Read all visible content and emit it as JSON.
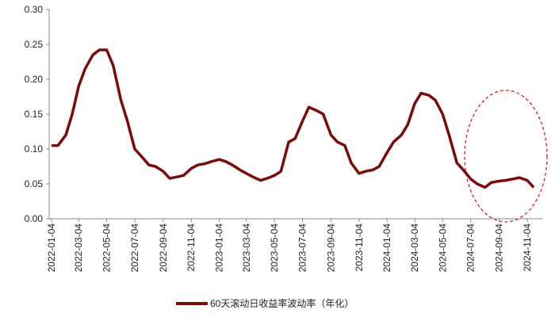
{
  "chart_data": {
    "type": "line",
    "x": [
      "2022-01-04",
      "2022-01-18",
      "2022-02-04",
      "2022-02-18",
      "2022-03-04",
      "2022-03-18",
      "2022-04-04",
      "2022-04-18",
      "2022-05-04",
      "2022-05-18",
      "2022-06-04",
      "2022-06-18",
      "2022-07-04",
      "2022-07-18",
      "2022-08-04",
      "2022-08-18",
      "2022-09-04",
      "2022-09-18",
      "2022-10-04",
      "2022-10-18",
      "2022-11-04",
      "2022-11-18",
      "2022-12-04",
      "2022-12-18",
      "2023-01-04",
      "2023-01-18",
      "2023-02-04",
      "2023-02-18",
      "2023-03-04",
      "2023-03-18",
      "2023-04-04",
      "2023-04-18",
      "2023-05-04",
      "2023-05-18",
      "2023-06-04",
      "2023-06-18",
      "2023-07-04",
      "2023-07-18",
      "2023-08-04",
      "2023-08-18",
      "2023-09-04",
      "2023-09-18",
      "2023-10-04",
      "2023-10-18",
      "2023-11-04",
      "2023-11-18",
      "2023-12-04",
      "2023-12-18",
      "2024-01-04",
      "2024-01-18",
      "2024-02-04",
      "2024-02-18",
      "2024-03-04",
      "2024-03-18",
      "2024-04-04",
      "2024-04-18",
      "2024-05-04",
      "2024-05-18",
      "2024-06-04",
      "2024-06-18",
      "2024-07-04",
      "2024-07-18",
      "2024-08-04",
      "2024-08-18",
      "2024-09-04",
      "2024-09-18",
      "2024-10-04",
      "2024-10-18",
      "2024-11-04",
      "2024-11-18"
    ],
    "series": [
      {
        "name": "60天滚动日收益率波动率（年化）",
        "color": "#7b0c0c",
        "values": [
          0.105,
          0.105,
          0.12,
          0.15,
          0.19,
          0.215,
          0.235,
          0.242,
          0.242,
          0.22,
          0.17,
          0.14,
          0.1,
          0.09,
          0.077,
          0.075,
          0.068,
          0.058,
          0.06,
          0.062,
          0.072,
          0.077,
          0.079,
          0.082,
          0.085,
          0.082,
          0.076,
          0.07,
          0.065,
          0.06,
          0.055,
          0.058,
          0.062,
          0.068,
          0.11,
          0.115,
          0.14,
          0.16,
          0.155,
          0.15,
          0.12,
          0.11,
          0.105,
          0.08,
          0.065,
          0.068,
          0.07,
          0.075,
          0.095,
          0.11,
          0.12,
          0.135,
          0.165,
          0.18,
          0.177,
          0.17,
          0.15,
          0.12,
          0.08,
          0.07,
          0.057,
          0.05,
          0.045,
          0.052,
          0.054,
          0.055,
          0.057,
          0.059,
          0.055,
          0.045
        ]
      }
    ],
    "ylim": [
      0,
      0.3
    ],
    "yticks": [
      {
        "value": 0,
        "label": "0.00"
      },
      {
        "value": 0.05,
        "label": "0.05"
      },
      {
        "value": 0.1,
        "label": "0.10"
      },
      {
        "value": 0.15,
        "label": "0.15"
      },
      {
        "value": 0.2,
        "label": "0.20"
      },
      {
        "value": 0.25,
        "label": "0.25"
      },
      {
        "value": 0.3,
        "label": "0.30"
      }
    ],
    "xticks": [
      "2022-01-04",
      "2022-03-04",
      "2022-05-04",
      "2022-07-04",
      "2022-09-04",
      "2022-11-04",
      "2023-01-04",
      "2023-03-04",
      "2023-05-04",
      "2023-07-04",
      "2023-09-04",
      "2023-11-04",
      "2024-01-04",
      "2024-03-04",
      "2024-05-04",
      "2024-07-04",
      "2024-09-04",
      "2024-11-04"
    ],
    "legend": "bottom"
  }
}
